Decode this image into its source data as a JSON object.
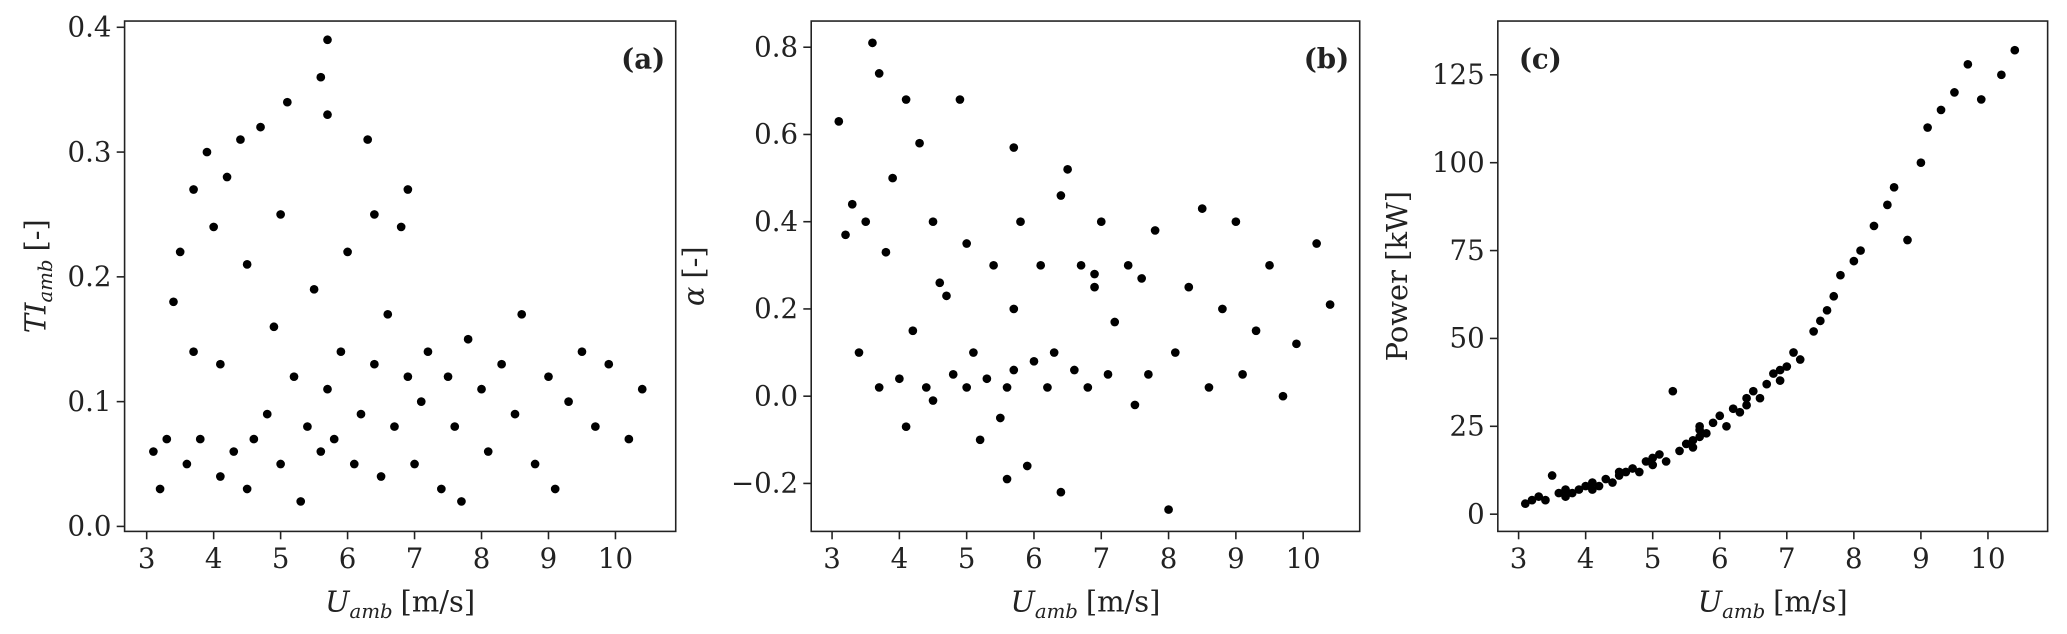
{
  "chart_data": [
    {
      "type": "scatter",
      "panel": "(a)",
      "panel_corner": "upper right",
      "color": "#000000",
      "xlabel": {
        "text": "U",
        "sub": "amb",
        "unit": "[m/s]"
      },
      "ylabel": {
        "text": "TI",
        "sub": "amb",
        "unit": "[-]"
      },
      "xlim": [
        2.67,
        10.9
      ],
      "ylim": [
        -0.004,
        0.405
      ],
      "xticks": [
        3,
        4,
        5,
        6,
        7,
        8,
        9,
        10
      ],
      "yticks": [
        {
          "value": 0.0,
          "label": "0.0"
        },
        {
          "value": 0.1,
          "label": "0.1"
        },
        {
          "value": 0.2,
          "label": "0.2"
        },
        {
          "value": 0.3,
          "label": "0.3"
        },
        {
          "value": 0.4,
          "label": "0.4"
        }
      ],
      "x": [
        3.1,
        3.2,
        3.3,
        3.4,
        3.5,
        3.6,
        3.7,
        3.7,
        3.8,
        3.9,
        4.0,
        4.1,
        4.1,
        4.2,
        4.3,
        4.4,
        4.5,
        4.5,
        4.7,
        4.8,
        4.9,
        5.0,
        5.0,
        5.1,
        5.2,
        5.3,
        5.4,
        5.5,
        5.6,
        5.7,
        5.7,
        5.8,
        5.9,
        6.0,
        6.1,
        6.2,
        6.3,
        6.4,
        6.5,
        6.6,
        6.7,
        6.8,
        6.9,
        7.0,
        7.1,
        7.2,
        7.4,
        7.5,
        7.6,
        7.7,
        7.8,
        8.0,
        8.1,
        8.3,
        8.5,
        8.6,
        8.8,
        9.0,
        9.1,
        9.3,
        9.5,
        9.7,
        9.9,
        10.2,
        10.4,
        5.7,
        5.6,
        6.4,
        6.9,
        4.6
      ],
      "values": [
        0.06,
        0.03,
        0.07,
        0.18,
        0.22,
        0.05,
        0.14,
        0.27,
        0.07,
        0.3,
        0.24,
        0.13,
        0.04,
        0.28,
        0.06,
        0.31,
        0.03,
        0.21,
        0.32,
        0.09,
        0.16,
        0.25,
        0.05,
        0.34,
        0.12,
        0.02,
        0.08,
        0.19,
        0.06,
        0.11,
        0.33,
        0.07,
        0.14,
        0.22,
        0.05,
        0.09,
        0.31,
        0.13,
        0.04,
        0.17,
        0.08,
        0.24,
        0.12,
        0.05,
        0.1,
        0.14,
        0.03,
        0.12,
        0.08,
        0.02,
        0.15,
        0.11,
        0.06,
        0.13,
        0.09,
        0.17,
        0.05,
        0.12,
        0.03,
        0.1,
        0.14,
        0.08,
        0.13,
        0.07,
        0.11,
        0.39,
        0.36,
        0.25,
        0.27,
        0.07
      ]
    },
    {
      "type": "scatter",
      "panel": "(b)",
      "panel_corner": "upper right",
      "color": "#000000",
      "xlabel": {
        "text": "U",
        "sub": "amb",
        "unit": "[m/s]"
      },
      "ylabel": {
        "text": "α",
        "unit": "[-]"
      },
      "xlim": [
        2.69,
        10.84
      ],
      "ylim": [
        -0.31,
        0.86
      ],
      "xticks": [
        3,
        4,
        5,
        6,
        7,
        8,
        9,
        10
      ],
      "yticks": [
        {
          "value": -0.2,
          "label": "−0.2"
        },
        {
          "value": 0.0,
          "label": "0.0"
        },
        {
          "value": 0.2,
          "label": "0.2"
        },
        {
          "value": 0.4,
          "label": "0.4"
        },
        {
          "value": 0.6,
          "label": "0.6"
        },
        {
          "value": 0.8,
          "label": "0.8"
        }
      ],
      "x": [
        3.1,
        3.2,
        3.3,
        3.4,
        3.5,
        3.6,
        3.7,
        3.7,
        3.8,
        3.9,
        4.0,
        4.1,
        4.1,
        4.2,
        4.3,
        4.4,
        4.5,
        4.5,
        4.7,
        4.8,
        4.9,
        5.0,
        5.0,
        5.1,
        5.2,
        5.3,
        5.4,
        5.5,
        5.6,
        5.7,
        5.7,
        5.8,
        5.9,
        6.0,
        6.1,
        6.2,
        6.3,
        6.4,
        6.5,
        6.6,
        6.7,
        6.8,
        6.9,
        7.0,
        7.1,
        7.2,
        7.4,
        7.5,
        7.6,
        7.7,
        7.8,
        8.0,
        8.1,
        8.3,
        8.5,
        8.6,
        8.8,
        9.0,
        9.1,
        9.3,
        9.5,
        9.7,
        9.9,
        10.2,
        10.4,
        5.7,
        5.6,
        6.4,
        6.9,
        4.6
      ],
      "values": [
        0.63,
        0.37,
        0.44,
        0.1,
        0.4,
        0.81,
        0.02,
        0.74,
        0.33,
        0.5,
        0.04,
        0.68,
        -0.07,
        0.15,
        0.58,
        0.02,
        0.4,
        -0.01,
        0.23,
        0.05,
        0.68,
        0.02,
        0.35,
        0.1,
        -0.1,
        0.04,
        0.3,
        -0.05,
        0.02,
        0.2,
        0.57,
        0.4,
        -0.16,
        0.08,
        0.3,
        0.02,
        0.1,
        -0.22,
        0.52,
        0.06,
        0.3,
        0.02,
        0.25,
        0.4,
        0.05,
        0.17,
        0.3,
        -0.02,
        0.27,
        0.05,
        0.38,
        -0.26,
        0.1,
        0.25,
        0.43,
        0.02,
        0.2,
        0.4,
        0.05,
        0.15,
        0.3,
        0.0,
        0.12,
        0.35,
        0.21,
        0.06,
        -0.19,
        0.46,
        0.28,
        0.26
      ]
    },
    {
      "type": "scatter",
      "panel": "(c)",
      "panel_corner": "upper left",
      "color": "#000000",
      "xlabel": {
        "text": "U",
        "sub": "amb",
        "unit": "[m/s]"
      },
      "ylabel": {
        "text": "Power [kW]"
      },
      "xlim": [
        2.69,
        10.89
      ],
      "ylim": [
        -4.9,
        140.3
      ],
      "xticks": [
        3,
        4,
        5,
        6,
        7,
        8,
        9,
        10
      ],
      "yticks": [
        0,
        25,
        50,
        75,
        100,
        125
      ],
      "x": [
        3.1,
        3.2,
        3.3,
        3.4,
        3.5,
        3.6,
        3.7,
        3.7,
        3.8,
        3.9,
        4.0,
        4.1,
        4.1,
        4.2,
        4.3,
        4.4,
        4.5,
        4.5,
        4.7,
        4.8,
        4.9,
        5.0,
        5.0,
        5.1,
        5.2,
        5.3,
        5.4,
        5.5,
        5.6,
        5.7,
        5.7,
        5.8,
        5.9,
        6.0,
        6.1,
        6.2,
        6.3,
        6.4,
        6.5,
        6.6,
        6.7,
        6.8,
        6.9,
        7.0,
        7.1,
        7.2,
        7.4,
        7.5,
        7.6,
        7.7,
        7.8,
        8.0,
        8.1,
        8.3,
        8.5,
        8.6,
        8.8,
        9.0,
        9.1,
        9.3,
        9.5,
        9.7,
        9.9,
        10.2,
        10.4,
        5.7,
        5.6,
        6.4,
        6.9,
        4.6
      ],
      "values": [
        3,
        4,
        5,
        4,
        11,
        6,
        5,
        7,
        6,
        7,
        8,
        7,
        9,
        8,
        10,
        9,
        11,
        12,
        13,
        12,
        15,
        14,
        16,
        17,
        15,
        35,
        18,
        20,
        21,
        22,
        25,
        23,
        26,
        28,
        25,
        30,
        29,
        31,
        35,
        33,
        37,
        40,
        38,
        42,
        46,
        44,
        52,
        55,
        58,
        62,
        68,
        72,
        75,
        82,
        88,
        93,
        78,
        100,
        110,
        115,
        120,
        128,
        118,
        125,
        132,
        24,
        19,
        33,
        41,
        12
      ]
    }
  ]
}
